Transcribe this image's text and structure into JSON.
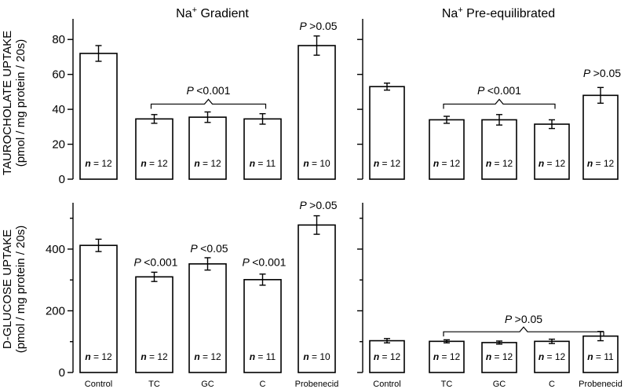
{
  "y_titles": {
    "top_line1": "TAUROCHOLATE UPTAKE",
    "top_line2": "(pmol / mg protein / 20s)",
    "bottom_line1": "D-GLUCOSE UPTAKE",
    "bottom_line2": "(pmol / mg protein / 20s)"
  },
  "chart_data": [
    {
      "type": "bar",
      "panel": "top-left",
      "title_main": "Na",
      "title_sup": "+",
      "title_rest": " Gradient",
      "categories": [
        "Control",
        "TC",
        "GC",
        "C",
        "Probenecid"
      ],
      "values": [
        72,
        34.5,
        35.5,
        34.5,
        76.5
      ],
      "errors": [
        4.5,
        2.5,
        3,
        3,
        5.5
      ],
      "n_labels": [
        "n = 12",
        "n = 12",
        "n = 12",
        "n = 11",
        "n = 10"
      ],
      "ylim": [
        0,
        90
      ],
      "yticks": [
        "0",
        "20",
        "40",
        "60",
        "80"
      ],
      "ytick_values": [
        0,
        20,
        40,
        60,
        80
      ],
      "annotations": [
        {
          "text": "P <0.001",
          "type": "brace",
          "from": 1,
          "to": 3,
          "y": 43,
          "label_y": 48.5
        },
        {
          "text": "P >0.05",
          "type": "single",
          "cat": 4,
          "label_y": 85.5
        }
      ]
    },
    {
      "type": "bar",
      "panel": "top-right",
      "title_main": "Na",
      "title_sup": "+",
      "title_rest": " Pre-equilibrated",
      "categories": [
        "Control",
        "TC",
        "GC",
        "C",
        "Probenecid"
      ],
      "values": [
        53,
        34,
        34,
        31.5,
        48
      ],
      "errors": [
        2,
        2,
        3,
        2.5,
        4.5
      ],
      "n_labels": [
        "n = 12",
        "n = 12",
        "n = 12",
        "n = 12",
        "n = 12"
      ],
      "ylim": [
        0,
        90
      ],
      "yticks": [
        "",
        "",
        "",
        "",
        ""
      ],
      "ytick_values": [
        0,
        20,
        40,
        60,
        80
      ],
      "annotations": [
        {
          "text": "P <0.001",
          "type": "brace",
          "from": 1,
          "to": 3,
          "y": 43,
          "label_y": 48.5
        },
        {
          "text": "P >0.05",
          "type": "single",
          "cat": 4,
          "label_y": 58.5
        }
      ]
    },
    {
      "type": "bar",
      "panel": "bottom-left",
      "categories": [
        "Control",
        "TC",
        "GC",
        "C",
        "Probenecid"
      ],
      "values": [
        412,
        310,
        352,
        301,
        478
      ],
      "errors": [
        20,
        15,
        20,
        18,
        30
      ],
      "n_labels": [
        "n = 12",
        "n = 12",
        "n = 12",
        "n = 11",
        "n = 10"
      ],
      "ylim": [
        0,
        540
      ],
      "yticks": [
        "0",
        "200",
        "400"
      ],
      "ytick_values": [
        0,
        200,
        400
      ],
      "minor_ticks": [
        100,
        300,
        500
      ],
      "annotations": [
        {
          "text": "P <0.001",
          "type": "single",
          "cat": 1,
          "label_y": 345
        },
        {
          "text": "P <0.05",
          "type": "single",
          "cat": 2,
          "label_y": 390
        },
        {
          "text": "P <0.001",
          "type": "single",
          "cat": 3,
          "label_y": 345
        },
        {
          "text": "P >0.05",
          "type": "single",
          "cat": 4,
          "label_y": 530
        }
      ]
    },
    {
      "type": "bar",
      "panel": "bottom-right",
      "categories": [
        "Control",
        "TC",
        "GC",
        "C",
        "Probenecid"
      ],
      "values": [
        103,
        101,
        97,
        101,
        118
      ],
      "errors": [
        7,
        5,
        5,
        7,
        15
      ],
      "n_labels": [
        "n = 12",
        "n = 12",
        "n = 12",
        "n = 12",
        "n = 11"
      ],
      "ylim": [
        0,
        540
      ],
      "yticks": [
        "",
        "",
        ""
      ],
      "ytick_values": [
        0,
        200,
        400
      ],
      "minor_ticks": [
        100,
        300,
        500
      ],
      "annotations": [
        {
          "text": "P >0.05",
          "type": "brace",
          "from": 1,
          "to": 4,
          "y": 132,
          "label_y": 160
        }
      ]
    }
  ]
}
